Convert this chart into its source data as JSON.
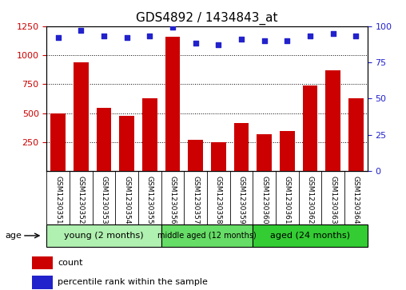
{
  "title": "GDS4892 / 1434843_at",
  "samples": [
    "GSM1230351",
    "GSM1230352",
    "GSM1230353",
    "GSM1230354",
    "GSM1230355",
    "GSM1230356",
    "GSM1230357",
    "GSM1230358",
    "GSM1230359",
    "GSM1230360",
    "GSM1230361",
    "GSM1230362",
    "GSM1230363",
    "GSM1230364"
  ],
  "counts": [
    500,
    940,
    545,
    475,
    630,
    1160,
    270,
    250,
    415,
    315,
    345,
    740,
    870,
    625
  ],
  "percentile_ranks": [
    92,
    97,
    93,
    92,
    93,
    99,
    88,
    87,
    91,
    90,
    90,
    93,
    95,
    93
  ],
  "ylim_left": [
    0,
    1250
  ],
  "ylim_right": [
    0,
    100
  ],
  "yticks_left": [
    250,
    500,
    750,
    1000,
    1250
  ],
  "yticks_right": [
    0,
    25,
    50,
    75,
    100
  ],
  "bar_color": "#cc0000",
  "dot_color": "#2222cc",
  "group_colors": [
    "#b0f0b0",
    "#66dd66",
    "#33cc33"
  ],
  "groups": [
    {
      "label": "young (2 months)",
      "start": 0,
      "end": 5
    },
    {
      "label": "middle aged (12 months)",
      "start": 5,
      "end": 9
    },
    {
      "label": "aged (24 months)",
      "start": 9,
      "end": 14
    }
  ],
  "legend_count_label": "count",
  "legend_pct_label": "percentile rank within the sample",
  "age_label": "age",
  "background_color": "#ffffff",
  "plot_bg_color": "#ffffff",
  "label_box_color": "#d0d0d0",
  "title_fontsize": 11,
  "tick_fontsize": 8,
  "sample_fontsize": 6.5,
  "group_fontsize": 8,
  "legend_fontsize": 8
}
